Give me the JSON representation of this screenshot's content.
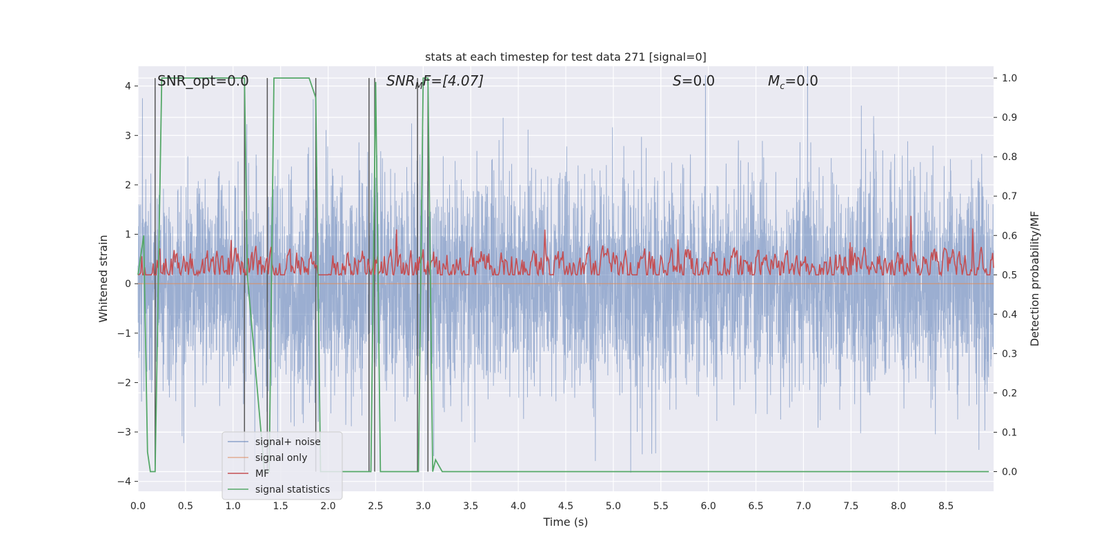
{
  "chart_data": {
    "type": "line",
    "title": "stats at each timestep for test data 271 [signal=0]",
    "xlabel": "Time (s)",
    "ylabel": "Whitened strain",
    "ylabel_right": "Detection probability/MF",
    "xlim": [
      0,
      9
    ],
    "ylim": [
      -4.2,
      4.4
    ],
    "ylim_right": [
      -0.05,
      1.03
    ],
    "x_ticks": [
      "0.0",
      "0.5",
      "1.0",
      "1.5",
      "2.0",
      "2.5",
      "3.0",
      "3.5",
      "4.0",
      "4.5",
      "5.0",
      "5.5",
      "6.0",
      "6.5",
      "7.0",
      "7.5",
      "8.0",
      "8.5"
    ],
    "y_ticks": [
      "−4",
      "−3",
      "−2",
      "−1",
      "0",
      "1",
      "2",
      "3",
      "4"
    ],
    "y_ticks_right": [
      "0.0",
      "0.1",
      "0.2",
      "0.3",
      "0.4",
      "0.5",
      "0.6",
      "0.7",
      "0.8",
      "0.9",
      "1.0"
    ],
    "grid": true,
    "legend_position": "lower-left",
    "annotations": [
      {
        "text": "SNR_opt=0.0"
      },
      {
        "base": "SNR",
        "sub": "M",
        "tail": "F=[4.07]",
        "italic": true
      },
      {
        "base": "S",
        "tail": "=0.0",
        "italic": true
      },
      {
        "base": "M",
        "sub": "c",
        "tail": "=0.0",
        "italic": true
      }
    ],
    "series": [
      {
        "name": "signal+ noise",
        "axis": "left",
        "color": "#4c72b0",
        "style": "noise",
        "envelope": 3.1
      },
      {
        "name": "signal only",
        "axis": "left",
        "color": "#dd8452",
        "values": [
          0,
          0
        ]
      },
      {
        "name": "MF",
        "axis": "right",
        "color": "#c44e52",
        "style": "mf",
        "baseline": 0.52
      },
      {
        "name": "signal statistics",
        "axis": "right",
        "color": "#55a868",
        "x": [
          0.0,
          0.06,
          0.1,
          0.13,
          0.18,
          0.25,
          0.3,
          1.1,
          1.12,
          1.15,
          1.33,
          1.38,
          1.43,
          1.48,
          1.8,
          1.87,
          1.92,
          2.4,
          2.45,
          2.5,
          2.55,
          2.6,
          2.9,
          2.95,
          3.0,
          3.05,
          3.1,
          3.13,
          3.2,
          8.75,
          8.8,
          8.95
        ],
        "values": [
          0.5,
          0.6,
          0.05,
          0.0,
          0.0,
          1.0,
          1.0,
          1.0,
          1.0,
          0.5,
          0.0,
          0.0,
          1.0,
          1.0,
          1.0,
          0.95,
          0.0,
          0.0,
          0.0,
          0.99,
          0.0,
          0.0,
          0.0,
          0.0,
          1.0,
          1.0,
          0.0,
          0.03,
          0.0,
          0.0,
          0.0,
          0.0
        ]
      }
    ],
    "vertical_markers": [
      0.18,
      1.12,
      1.36,
      1.87,
      2.43,
      2.49,
      2.94,
      3.05
    ]
  }
}
